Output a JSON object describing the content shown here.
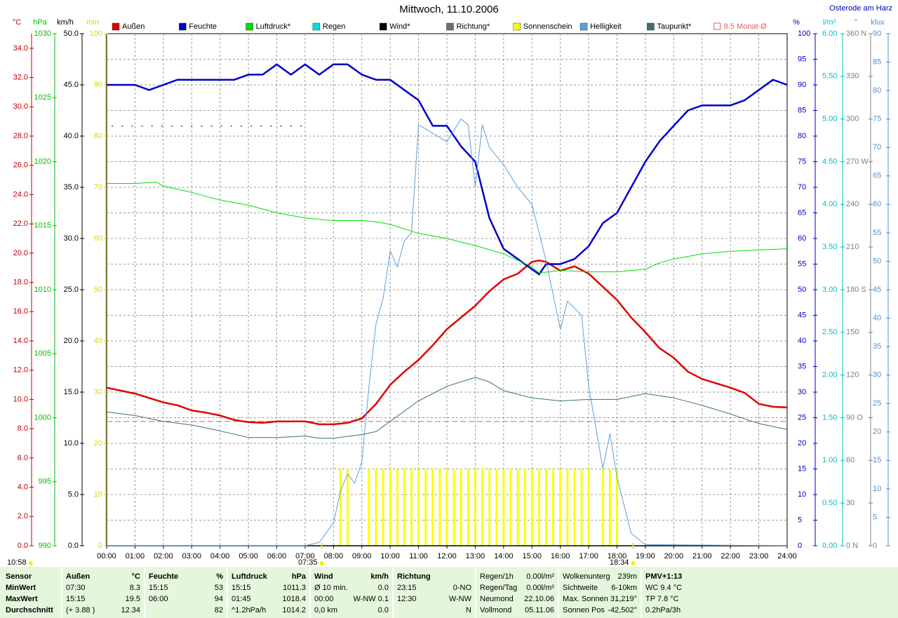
{
  "chart_data": {
    "type": "line",
    "title": "Mittwoch, 11.10.2006",
    "location": "Osterode am Harz",
    "xlim": [
      0,
      24
    ],
    "xgrid": true,
    "xticks": [
      {
        "value": 0,
        "label": "00:00"
      },
      {
        "value": 1,
        "label": "01:00"
      },
      {
        "value": 2,
        "label": "02:00"
      },
      {
        "value": 3,
        "label": "03:00"
      },
      {
        "value": 4,
        "label": "04:00"
      },
      {
        "value": 5,
        "label": "05:00"
      },
      {
        "value": 6,
        "label": "06:00"
      },
      {
        "value": 7,
        "label": "07:00"
      },
      {
        "value": 8,
        "label": "08:00"
      },
      {
        "value": 9,
        "label": "09:00"
      },
      {
        "value": 10,
        "label": "10:00"
      },
      {
        "value": 11,
        "label": "11:00"
      },
      {
        "value": 12,
        "label": "12:00"
      },
      {
        "value": 13,
        "label": "13:00"
      },
      {
        "value": 14,
        "label": "14:00"
      },
      {
        "value": 15,
        "label": "15:00"
      },
      {
        "value": 16,
        "label": "16:00"
      },
      {
        "value": 17,
        "label": "17:00"
      },
      {
        "value": 18,
        "label": "18:00"
      },
      {
        "value": 19,
        "label": "19:00"
      },
      {
        "value": 20,
        "label": "20:00"
      },
      {
        "value": 21,
        "label": "21:00"
      },
      {
        "value": 22,
        "label": "22:00"
      },
      {
        "value": 23,
        "label": "23:00"
      },
      {
        "value": 24,
        "label": "24:00"
      }
    ],
    "axes": [
      {
        "label": "°C",
        "side": "left",
        "color": "#c00000",
        "lim": [
          0,
          35
        ],
        "ticks": [
          {
            "value": 0,
            "label": "0.0"
          },
          {
            "value": 2,
            "label": "2.0"
          },
          {
            "value": 4,
            "label": "4.0"
          },
          {
            "value": 6,
            "label": "6.0"
          },
          {
            "value": 8,
            "label": "8.0"
          },
          {
            "value": 10,
            "label": "10.0"
          },
          {
            "value": 12,
            "label": "12.0"
          },
          {
            "value": 14,
            "label": "14.0"
          },
          {
            "value": 16,
            "label": "16.0"
          },
          {
            "value": 18,
            "label": "18.0"
          },
          {
            "value": 20,
            "label": "20.0"
          },
          {
            "value": 22,
            "label": "22.0"
          },
          {
            "value": 24,
            "label": "24.0"
          },
          {
            "value": 26,
            "label": "26.0"
          },
          {
            "value": 28,
            "label": "28.0"
          },
          {
            "value": 30,
            "label": "30.0"
          },
          {
            "value": 32,
            "label": "32.0"
          },
          {
            "value": 34,
            "label": "34.0"
          }
        ]
      },
      {
        "label": "hPa",
        "side": "left",
        "color": "#00c000",
        "lim": [
          990,
          1030
        ],
        "ticks": [
          990,
          995,
          1000,
          1005,
          1010,
          1015,
          1020,
          1025,
          1030
        ]
      },
      {
        "label": "km/h",
        "side": "left",
        "color": "#000000",
        "lim": [
          0,
          50
        ],
        "ticks": [
          {
            "value": 0,
            "label": "0.0"
          },
          {
            "value": 5,
            "label": "5.0"
          },
          {
            "value": 10,
            "label": "10.0"
          },
          {
            "value": 15,
            "label": "15.0"
          },
          {
            "value": 20,
            "label": "20.0"
          },
          {
            "value": 25,
            "label": "25.0"
          },
          {
            "value": 30,
            "label": "30.0"
          },
          {
            "value": 35,
            "label": "35.0"
          },
          {
            "value": 40,
            "label": "40.0"
          },
          {
            "value": 45,
            "label": "45.0"
          },
          {
            "value": 50,
            "label": "50.0"
          }
        ]
      },
      {
        "label": "min",
        "side": "left",
        "color": "#d8d800",
        "lim": [
          0,
          100
        ],
        "ticks": [
          0,
          10,
          20,
          30,
          40,
          50,
          60,
          70,
          80,
          90,
          100
        ]
      },
      {
        "label": "%",
        "side": "right",
        "color": "#0000c0",
        "lim": [
          0,
          100
        ],
        "grid": true,
        "ticks": [
          0,
          5,
          10,
          15,
          20,
          25,
          30,
          35,
          40,
          45,
          50,
          55,
          60,
          65,
          70,
          75,
          80,
          85,
          90,
          95,
          100
        ]
      },
      {
        "label": "l/m²",
        "side": "right",
        "color": "#00c0c0",
        "lim": [
          0,
          6
        ],
        "ticks": [
          {
            "value": 0,
            "label": "0.00"
          },
          {
            "value": 0.5,
            "label": "0.50"
          },
          {
            "value": 1,
            "label": "1.00"
          },
          {
            "value": 1.5,
            "label": "1.50"
          },
          {
            "value": 2,
            "label": "2.00"
          },
          {
            "value": 2.5,
            "label": "2.50"
          },
          {
            "value": 3,
            "label": "3.00"
          },
          {
            "value": 3.5,
            "label": "3.50"
          },
          {
            "value": 4,
            "label": "4.00"
          },
          {
            "value": 4.5,
            "label": "4.50"
          },
          {
            "value": 5,
            "label": "5.00"
          },
          {
            "value": 5.5,
            "label": "5.50"
          },
          {
            "value": 6,
            "label": "6.00"
          }
        ]
      },
      {
        "label": "°",
        "side": "right",
        "color": "#808080",
        "lim": [
          0,
          360
        ],
        "ticks": [
          {
            "value": 0,
            "label": "0 N"
          },
          30,
          60,
          {
            "value": 90,
            "label": "90 O"
          },
          120,
          150,
          {
            "value": 180,
            "label": "180 S"
          },
          210,
          240,
          {
            "value": 270,
            "label": "270 W"
          },
          300,
          330,
          {
            "value": 360,
            "label": "360 N"
          }
        ]
      },
      {
        "label": "klux",
        "side": "right",
        "color": "#5090d0",
        "lim": [
          0,
          90
        ],
        "ticks": [
          0,
          5,
          10,
          15,
          20,
          25,
          30,
          35,
          40,
          45,
          50,
          55,
          60,
          65,
          70,
          75,
          80,
          85,
          90
        ]
      }
    ],
    "series": [
      {
        "name": "Außen",
        "color": "#e00000",
        "axis": "°C",
        "line_width": 2.5,
        "x": [
          0,
          0.5,
          1,
          1.5,
          2,
          2.5,
          3,
          3.5,
          4,
          4.5,
          5,
          5.5,
          6,
          6.5,
          7,
          7.5,
          8,
          8.5,
          9,
          9.5,
          10,
          10.5,
          11,
          11.5,
          12,
          12.5,
          13,
          13.5,
          14,
          14.5,
          15,
          15.25,
          15.5,
          16,
          16.5,
          17,
          17.5,
          18,
          18.5,
          19,
          19.5,
          20,
          20.5,
          21,
          21.5,
          22,
          22.5,
          23,
          23.5,
          24
        ],
        "values": [
          10.8,
          10.6,
          10.4,
          10.1,
          9.8,
          9.6,
          9.25,
          9.1,
          8.9,
          8.6,
          8.45,
          8.4,
          8.5,
          8.5,
          8.5,
          8.3,
          8.3,
          8.4,
          8.7,
          9.7,
          11.0,
          11.9,
          12.7,
          13.7,
          14.8,
          15.6,
          16.4,
          17.4,
          18.2,
          18.6,
          19.4,
          19.5,
          19.4,
          18.8,
          19.1,
          18.6,
          17.7,
          16.8,
          15.6,
          14.6,
          13.5,
          12.85,
          11.9,
          11.4,
          11.1,
          10.8,
          10.45,
          9.7,
          9.5,
          9.45
        ]
      },
      {
        "name": "Feuchte",
        "color": "#0000c8",
        "axis": "%",
        "line_width": 2.5,
        "x": [
          0,
          0.5,
          1,
          1.5,
          2,
          2.5,
          3,
          3.5,
          4,
          4.5,
          5,
          5.5,
          6,
          6.5,
          7,
          7.5,
          8,
          8.5,
          9,
          9.5,
          10,
          10.5,
          11,
          11.5,
          12,
          12.5,
          13,
          13.5,
          14,
          14.5,
          15,
          15.25,
          15.5,
          16,
          16.5,
          17,
          17.5,
          18,
          18.5,
          19,
          19.5,
          20,
          20.5,
          21,
          21.5,
          22,
          22.5,
          23,
          23.5,
          24
        ],
        "values": [
          90,
          90,
          90,
          89,
          90,
          91,
          91,
          91,
          91,
          91,
          92,
          92,
          94,
          92,
          94,
          92,
          94,
          94,
          92,
          91,
          91,
          89,
          87,
          82,
          82,
          78,
          75,
          64,
          58,
          56,
          54,
          53,
          55,
          55,
          56,
          58.5,
          63,
          65,
          70,
          75,
          79,
          82,
          85,
          86,
          86,
          86,
          87,
          89,
          91,
          90
        ]
      },
      {
        "name": "Luftdruck*",
        "color": "#00e000",
        "axis": "hPa",
        "line_width": 1,
        "x": [
          0,
          1,
          1.75,
          2,
          3,
          3.5,
          4,
          5,
          5.5,
          6,
          7,
          8,
          9,
          9.5,
          10,
          11,
          12,
          13,
          14,
          15,
          15.25,
          16,
          17,
          18,
          19,
          19.5,
          20,
          21,
          22,
          23,
          24
        ],
        "values": [
          1018.3,
          1018.3,
          1018.4,
          1018.1,
          1017.6,
          1017.3,
          1017.0,
          1016.6,
          1016.3,
          1016.0,
          1015.6,
          1015.4,
          1015.4,
          1015.3,
          1015.1,
          1014.4,
          1014.0,
          1013.45,
          1012.8,
          1011.8,
          1011.3,
          1011.5,
          1011.4,
          1011.4,
          1011.6,
          1012.1,
          1012.4,
          1012.8,
          1013.0,
          1013.1,
          1013.2
        ]
      },
      {
        "name": "Regen",
        "color": "#00e0e0",
        "axis": "l/m²",
        "line_width": 1,
        "x": [
          0,
          24
        ],
        "values": [
          0,
          0
        ]
      },
      {
        "name": "Wind*",
        "color": "#000000",
        "axis": "km/h",
        "line_width": 1.5,
        "x": [
          0,
          24
        ],
        "values": [
          0,
          0
        ]
      },
      {
        "name": "Richtung*",
        "color": "#707070",
        "axis": "°",
        "style": "dots",
        "x": [
          0.2,
          0.55,
          0.9,
          1.25,
          1.6,
          1.95,
          2.3,
          2.65,
          3.0,
          3.35,
          3.7,
          4.05,
          4.4,
          4.75,
          5.1,
          5.45,
          5.8,
          6.15,
          6.5,
          6.85
        ],
        "values": [
          295,
          295,
          295,
          295,
          295,
          295,
          295,
          295,
          295,
          295,
          295,
          295,
          295,
          295,
          295,
          295,
          295,
          295,
          295,
          295
        ]
      },
      {
        "name": "Sonnenschein",
        "color": "#ffff00",
        "axis": "min",
        "style": "bars",
        "x": [
          8.25,
          8.5,
          9.25,
          9.5,
          9.75,
          10,
          10.25,
          10.5,
          10.75,
          11,
          11.25,
          11.5,
          11.75,
          12,
          12.25,
          12.5,
          12.75,
          13,
          13.25,
          13.5,
          13.75,
          14,
          14.25,
          14.5,
          14.75,
          15,
          15.25,
          15.5,
          15.75,
          16,
          16.25,
          16.5,
          16.75,
          17,
          17.5,
          17.75,
          18
        ],
        "values": [
          15,
          15,
          15,
          15,
          15,
          15,
          15,
          15,
          15,
          15,
          15,
          15,
          15,
          15,
          15,
          15,
          15,
          15,
          15,
          15,
          15,
          15,
          15,
          15,
          15,
          15,
          15,
          15,
          15,
          15,
          15,
          15,
          15,
          15,
          15,
          15,
          15
        ]
      },
      {
        "name": "Helligkeit",
        "color": "#5aa0e0",
        "axis": "klux",
        "line_width": 1,
        "x": [
          0,
          7,
          7.5,
          8,
          8.25,
          8.5,
          8.75,
          9,
          9.25,
          9.5,
          9.75,
          10,
          10.25,
          10.5,
          10.75,
          11,
          11.5,
          12,
          12.5,
          12.75,
          13,
          13.25,
          13.5,
          14,
          14.5,
          15,
          15.5,
          16,
          16.25,
          16.75,
          17,
          17.5,
          17.75,
          18,
          18.5,
          19,
          24
        ],
        "values": [
          0,
          0,
          0.6,
          4,
          9.6,
          12.6,
          11,
          14.8,
          28,
          39,
          43.5,
          51.8,
          49,
          53.6,
          55,
          74,
          72.5,
          71,
          75,
          74,
          63,
          74,
          70,
          67,
          63,
          60,
          50,
          38,
          43,
          40.5,
          28,
          13.6,
          19.7,
          12,
          2.2,
          0.2,
          0
        ]
      },
      {
        "name": "Taupunkt*",
        "color": "#3a7070",
        "axis": "°C",
        "line_width": 1,
        "x": [
          0,
          1,
          2,
          3,
          4,
          5,
          6,
          7,
          7.5,
          8,
          9,
          9.5,
          10,
          11,
          12,
          13,
          13.5,
          14,
          15,
          16,
          17,
          18,
          19,
          20,
          21,
          22,
          23,
          24
        ],
        "values": [
          9.15,
          8.9,
          8.5,
          8.25,
          7.85,
          7.4,
          7.4,
          7.5,
          7.35,
          7.35,
          7.6,
          7.8,
          8.5,
          9.9,
          10.9,
          11.5,
          11.2,
          10.6,
          10.1,
          9.9,
          10.0,
          10.0,
          10.4,
          10.1,
          9.6,
          9.0,
          8.35,
          7.95
        ]
      }
    ],
    "reference": {
      "label": "8.5 Monat-Ø",
      "value": 8.5,
      "axis": "°C",
      "color": "#e06060"
    },
    "sunrise": {
      "label": "07:35",
      "x": 7.583
    },
    "sunset": {
      "label": "18:34",
      "x": 18.567
    },
    "noon_label": "10:58",
    "stats": {
      "row_labels": [
        "Sensor",
        "MinWert",
        "MaxWert",
        "Durchschnitt"
      ],
      "groups": [
        {
          "title": "Außen",
          "unit": "°C",
          "rows": [
            [
              "07:30",
              "8.3"
            ],
            [
              "15:15",
              "19.5"
            ],
            [
              "(+ 3.88 )",
              "12.34"
            ]
          ]
        },
        {
          "title": "Feuchte",
          "unit": "%",
          "rows": [
            [
              "15:15",
              "53"
            ],
            [
              "06:00",
              "94"
            ],
            [
              "82"
            ]
          ]
        },
        {
          "title": "Luftdruck",
          "unit": "hPa",
          "rows": [
            [
              "15:15",
              "1011.3"
            ],
            [
              "01:45",
              "1018.4"
            ],
            [
              "^1.2hPa/h",
              "1014.2"
            ]
          ]
        },
        {
          "title": "Wind",
          "unit": "km/h",
          "rows": [
            [
              "Ø 10 min.",
              "0.0"
            ],
            [
              "00:00",
              "W-NW 0.1"
            ],
            [
              "0,0 km",
              "0.0"
            ]
          ]
        },
        {
          "title": "Richtung",
          "rows": [
            [
              "23:15",
              "0-NO"
            ],
            [
              "12:30",
              "W-NW"
            ],
            [
              "N"
            ]
          ]
        }
      ],
      "info": [
        [
          [
            "Regen/1h",
            "0.00l/m²"
          ],
          [
            "Regen/Tag",
            "0.00l/m²"
          ],
          [
            "Neumond",
            "22.10.06"
          ],
          [
            "Vollmond",
            "05.11.06"
          ]
        ],
        [
          [
            "Wolkenunterg",
            "239m"
          ],
          [
            "Sichtweite",
            "6-10km"
          ],
          [
            "Max. Sonnen",
            "31,219°"
          ],
          [
            "Sonnen Pos",
            "-42,502°"
          ]
        ]
      ],
      "pmv": [
        "PMV+1:13",
        "WC 9.4 °C",
        "TP 7.8 °C",
        "0.2hPa/3h"
      ]
    }
  }
}
